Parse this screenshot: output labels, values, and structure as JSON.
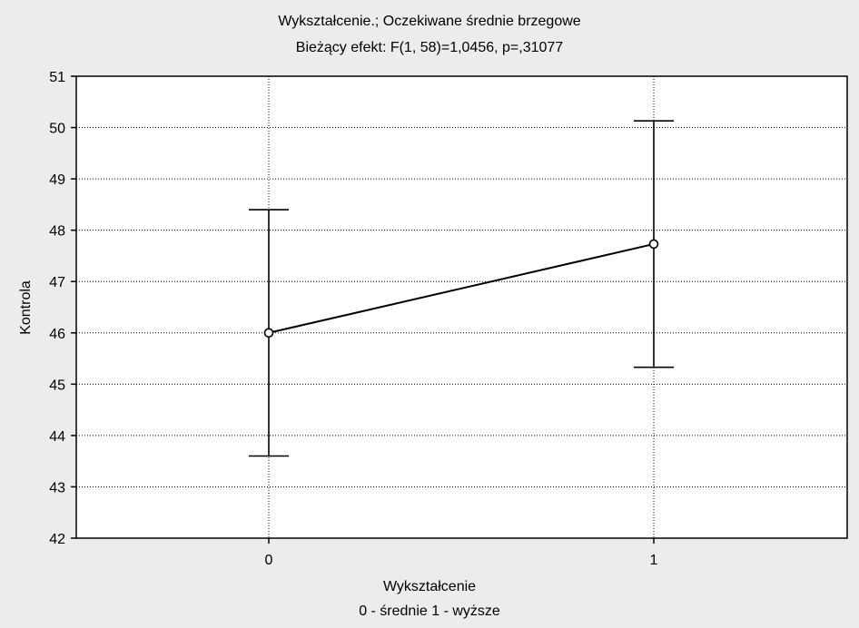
{
  "chart_data": {
    "type": "line",
    "title": "Wykształcenie.; Oczekiwane średnie brzegowe",
    "subtitle": "Bieżący efekt: F(1, 58)=1,0456, p=,31077",
    "xlabel": "Wykształcenie",
    "xlabel_sub": "0 - średnie 1 - wyższe",
    "ylabel": "Kontrola",
    "categories": [
      "0",
      "1"
    ],
    "series": [
      {
        "values": [
          46.0,
          47.73
        ],
        "error_lower": [
          43.6,
          45.33
        ],
        "error_upper": [
          48.4,
          50.13
        ]
      }
    ],
    "ylim": [
      42,
      51
    ],
    "yticks": [
      "42",
      "43",
      "44",
      "45",
      "46",
      "47",
      "48",
      "49",
      "50",
      "51"
    ],
    "grid": true,
    "colors": {
      "background": "#ececec",
      "plot_area": "#ffffff",
      "line": "#000000",
      "marker_fill": "#ffffff"
    }
  }
}
